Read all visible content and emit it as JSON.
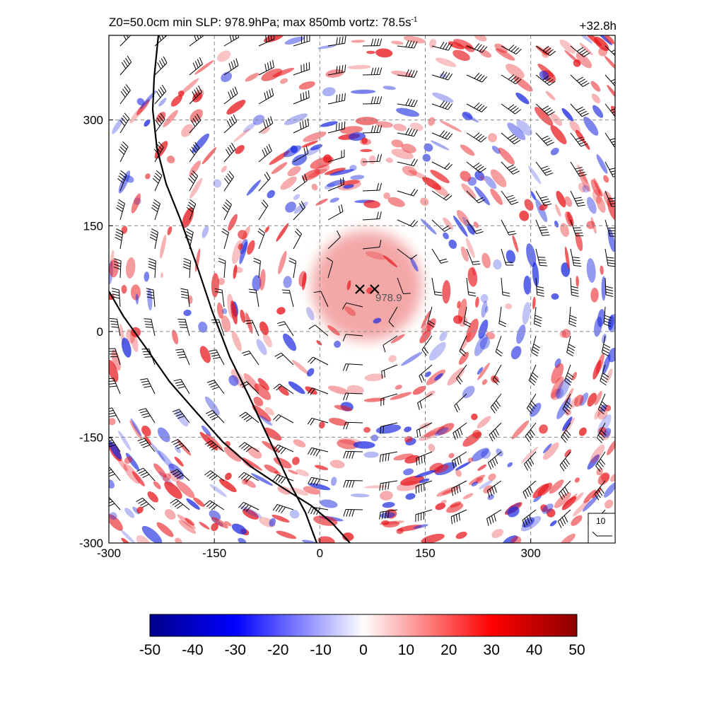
{
  "header": {
    "title_prefix": "Z0=50.0cm  min SLP: 978.9hPa; max 850mb vortz:  78.5s",
    "title_exponent": "-1",
    "lead_time": "+32.8h"
  },
  "chart_data": {
    "type": "heatmap",
    "title": "Z0=50.0cm  min SLP: 978.9hPa; max 850mb vortz:  78.5s-1",
    "lead_time": "+32.8h",
    "x_ticks": [
      -300,
      -150,
      0,
      150,
      300
    ],
    "y_ticks": [
      300,
      150,
      0,
      -150,
      -300
    ],
    "xlim": [
      -300,
      420
    ],
    "ylim": [
      -300,
      420
    ],
    "grid": "dashed",
    "center_markers": [
      {
        "x": 57,
        "y": 60
      },
      {
        "x": 78,
        "y": 60
      }
    ],
    "center_label": "978.9",
    "wind_reference_label": "10",
    "colorbar": {
      "ticks": [
        "-50",
        "-40",
        "-30",
        "-20",
        "-10",
        "0",
        "10",
        "20",
        "30",
        "40",
        "50"
      ],
      "range": [
        -50,
        50
      ],
      "colors": [
        "#00008b",
        "#0000ff",
        "#ffffff",
        "#ff0000",
        "#8b0000"
      ]
    },
    "colors": {
      "positive": "#e8191e",
      "negative": "#1f2de0",
      "line": "#000000"
    }
  }
}
